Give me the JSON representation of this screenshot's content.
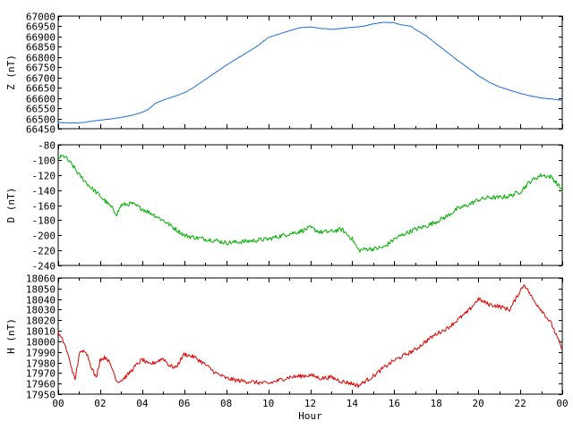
{
  "chart_data": [
    {
      "type": "line",
      "ylabel": "Z (nT)",
      "ylim": [
        66450,
        67000
      ],
      "yticks": [
        66450,
        66500,
        66550,
        66600,
        66650,
        66700,
        66750,
        66800,
        66850,
        66900,
        66950,
        67000
      ],
      "color": "#1f6fd6",
      "noise": 1,
      "x": [
        0,
        0.5,
        1,
        1.5,
        2,
        2.5,
        3,
        3.5,
        4,
        4.3,
        4.6,
        5,
        5.5,
        6,
        6.5,
        7,
        7.5,
        8,
        8.5,
        9,
        9.5,
        10,
        10.5,
        11,
        11.5,
        12,
        12.5,
        13,
        13.5,
        14,
        14.5,
        15,
        15.5,
        16,
        16.2,
        16.5,
        16.8,
        17,
        17.5,
        18,
        18.5,
        19,
        19.5,
        20,
        20.5,
        21,
        21.5,
        22,
        22.5,
        23,
        23.5,
        24
      ],
      "y": [
        66480,
        66478,
        66478,
        66485,
        66492,
        66498,
        66505,
        66515,
        66530,
        66545,
        66572,
        66590,
        66607,
        66625,
        66655,
        66690,
        66725,
        66760,
        66792,
        66822,
        66855,
        66895,
        66912,
        66928,
        66943,
        66947,
        66940,
        66935,
        66940,
        66945,
        66950,
        66962,
        66970,
        66968,
        66960,
        66955,
        66950,
        66935,
        66905,
        66865,
        66825,
        66785,
        66748,
        66710,
        66678,
        66655,
        66638,
        66622,
        66610,
        66600,
        66595,
        66588
      ]
    },
    {
      "type": "line",
      "ylabel": "D (nT)",
      "ylim": [
        -240,
        -80
      ],
      "yticks": [
        -240,
        -220,
        -200,
        -180,
        -160,
        -140,
        -120,
        -100,
        -80
      ],
      "color": "#00b000",
      "noise": 3,
      "x": [
        0,
        0.3,
        0.7,
        1,
        1.5,
        2,
        2.5,
        2.8,
        3,
        3.5,
        4,
        4.5,
        5,
        5.5,
        6,
        6.5,
        7,
        7.5,
        8,
        9,
        10,
        11,
        11.5,
        12,
        12.5,
        13,
        13.5,
        14,
        14.3,
        14.7,
        15,
        15.5,
        16,
        16.5,
        17,
        17.5,
        18,
        18.5,
        19,
        19.5,
        20,
        20.5,
        21,
        21.5,
        22,
        22.5,
        23,
        23.5,
        24
      ],
      "y": [
        -97,
        -95,
        -108,
        -120,
        -135,
        -148,
        -162,
        -172,
        -160,
        -158,
        -165,
        -172,
        -180,
        -190,
        -200,
        -203,
        -205,
        -207,
        -210,
        -208,
        -205,
        -198,
        -195,
        -190,
        -196,
        -195,
        -192,
        -205,
        -220,
        -218,
        -218,
        -216,
        -205,
        -198,
        -192,
        -188,
        -182,
        -175,
        -165,
        -160,
        -153,
        -150,
        -150,
        -148,
        -142,
        -128,
        -120,
        -123,
        -140
      ]
    },
    {
      "type": "line",
      "ylabel": "H (nT)",
      "ylim": [
        17950,
        18060
      ],
      "yticks": [
        17950,
        17960,
        17970,
        17980,
        17990,
        18000,
        18010,
        18020,
        18030,
        18040,
        18050,
        18060
      ],
      "color": "#e00000",
      "noise": 2,
      "x": [
        0,
        0.3,
        0.6,
        0.8,
        1,
        1.3,
        1.6,
        1.8,
        2,
        2.3,
        2.6,
        2.8,
        3,
        3.3,
        3.6,
        4,
        4.3,
        4.6,
        5,
        5.3,
        5.6,
        6,
        6.5,
        7,
        7.5,
        8,
        8.5,
        9,
        9.5,
        10,
        10.5,
        11,
        11.5,
        12,
        12.5,
        13,
        13.5,
        14,
        14.3,
        14.6,
        15,
        15.5,
        16,
        16.5,
        17,
        17.5,
        18,
        18.5,
        19,
        19.5,
        20,
        20.5,
        21,
        21.5,
        22,
        22.2,
        22.6,
        23,
        23.5,
        24
      ],
      "y": [
        18008,
        17998,
        17978,
        17963,
        17988,
        17992,
        17975,
        17965,
        17983,
        17985,
        17973,
        17962,
        17963,
        17968,
        17975,
        17983,
        17978,
        17980,
        17984,
        17977,
        17975,
        17988,
        17985,
        17978,
        17970,
        17965,
        17963,
        17962,
        17961,
        17960,
        17963,
        17966,
        17967,
        17968,
        17965,
        17966,
        17962,
        17960,
        17958,
        17962,
        17967,
        17975,
        17982,
        17987,
        17992,
        18000,
        18007,
        18012,
        18020,
        18028,
        18040,
        18035,
        18033,
        18030,
        18048,
        18054,
        18040,
        18030,
        18016,
        17992
      ]
    }
  ],
  "x_axis": {
    "label": "Hour",
    "min": 0,
    "max": 24,
    "tick_labels": [
      "00",
      "02",
      "04",
      "06",
      "08",
      "10",
      "12",
      "14",
      "16",
      "18",
      "20",
      "22",
      "00"
    ]
  }
}
